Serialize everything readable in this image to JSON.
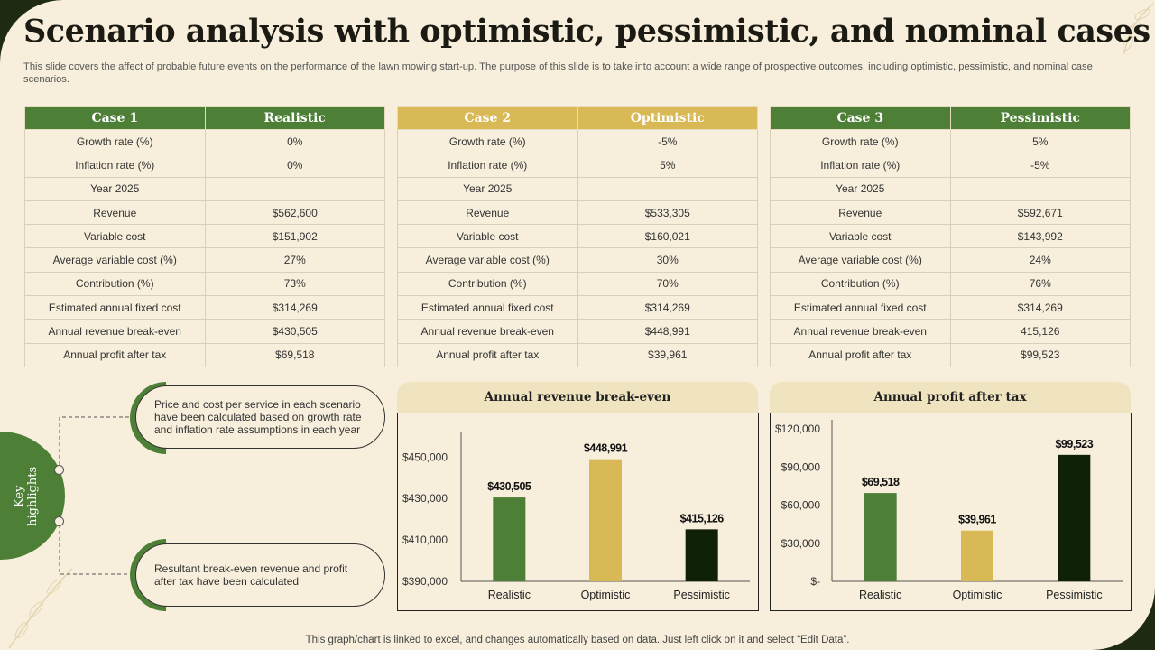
{
  "title": "Scenario analysis with optimistic, pessimistic, and nominal cases",
  "subtitle": "This slide covers the affect of probable future events on the performance of the lawn mowing start-up. The purpose of this slide is to take into account a wide range of prospective outcomes, including optimistic, pessimistic, and nominal case scenarios.",
  "tables": [
    {
      "header": [
        "Case 1",
        "Realistic"
      ],
      "rows": [
        [
          "Growth rate (%)",
          "0%"
        ],
        [
          "Inflation rate (%)",
          "0%"
        ],
        [
          "Year 2025",
          ""
        ],
        [
          "Revenue",
          "$562,600"
        ],
        [
          "Variable cost",
          "$151,902"
        ],
        [
          "Average variable cost (%)",
          "27%"
        ],
        [
          "Contribution (%)",
          "73%"
        ],
        [
          "Estimated annual fixed cost",
          "$314,269"
        ],
        [
          "Annual revenue break-even",
          "$430,505"
        ],
        [
          "Annual profit after tax",
          "$69,518"
        ]
      ]
    },
    {
      "header": [
        "Case 2",
        "Optimistic"
      ],
      "rows": [
        [
          "Growth rate (%)",
          "-5%"
        ],
        [
          "Inflation rate (%)",
          "5%"
        ],
        [
          "Year 2025",
          ""
        ],
        [
          "Revenue",
          "$533,305"
        ],
        [
          "Variable cost",
          "$160,021"
        ],
        [
          "Average variable cost (%)",
          "30%"
        ],
        [
          "Contribution (%)",
          "70%"
        ],
        [
          "Estimated annual fixed cost",
          "$314,269"
        ],
        [
          "Annual revenue break-even",
          "$448,991"
        ],
        [
          "Annual profit after tax",
          "$39,961"
        ]
      ]
    },
    {
      "header": [
        "Case 3",
        "Pessimistic"
      ],
      "rows": [
        [
          "Growth rate (%)",
          "5%"
        ],
        [
          "Inflation rate (%)",
          "-5%"
        ],
        [
          "Year 2025",
          ""
        ],
        [
          "Revenue",
          "$592,671"
        ],
        [
          "Variable cost",
          "$143,992"
        ],
        [
          "Average variable cost (%)",
          "24%"
        ],
        [
          "Contribution (%)",
          "76%"
        ],
        [
          "Estimated annual fixed cost",
          "$314,269"
        ],
        [
          "Annual revenue break-even",
          "415,126"
        ],
        [
          "Annual profit after tax",
          "$99,523"
        ]
      ]
    }
  ],
  "key_highlights": {
    "label": "Key highlights",
    "notes": [
      "Price and cost per service in each scenario have been calculated based on growth rate and inflation rate assumptions in each year",
      "Resultant break-even revenue and profit after tax have been calculated"
    ]
  },
  "footer": "This graph/chart is linked to excel, and changes automatically based on data. Just left click on it and select “Edit Data”.",
  "colors": {
    "green": "#4d7f37",
    "gold": "#d9b856",
    "dark": "#0f2208",
    "background": "#f7efdc"
  },
  "chart_data": [
    {
      "type": "bar",
      "title": "Annual revenue break-even",
      "categories": [
        "Realistic",
        "Optimistic",
        "Pessimistic"
      ],
      "values": [
        430505,
        448991,
        415126
      ],
      "value_labels": [
        "$430,505",
        "$448,991",
        "$415,126"
      ],
      "bar_colors": [
        "#4d7f37",
        "#d9b856",
        "#0f2208"
      ],
      "yticks": [
        390000,
        410000,
        430000,
        450000
      ],
      "ytick_labels": [
        "$390,000",
        "$410,000",
        "$430,000",
        "$450,000"
      ],
      "ylim": [
        390000,
        458000
      ],
      "grid": false
    },
    {
      "type": "bar",
      "title": "Annual profit after tax",
      "categories": [
        "Realistic",
        "Optimistic",
        "Pessimistic"
      ],
      "values": [
        69518,
        39961,
        99523
      ],
      "value_labels": [
        "$69,518",
        "$39,961",
        "$99,523"
      ],
      "bar_colors": [
        "#4d7f37",
        "#d9b856",
        "#0f2208"
      ],
      "yticks": [
        0,
        30000,
        60000,
        90000,
        120000
      ],
      "ytick_labels": [
        "$-",
        "$30,000",
        "$60,000",
        "$90,000",
        "$120,000"
      ],
      "ylim": [
        0,
        120000
      ],
      "grid": false
    }
  ]
}
